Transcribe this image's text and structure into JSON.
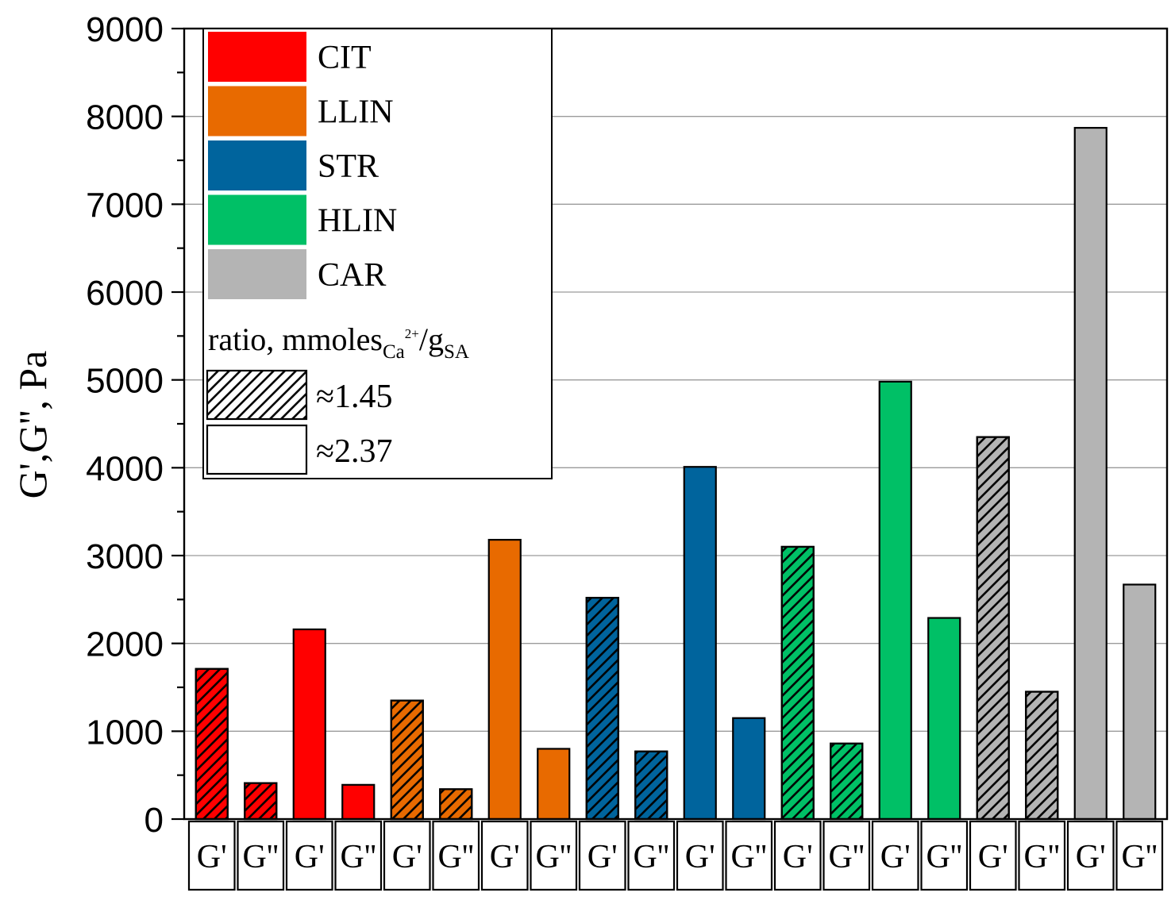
{
  "chart_data": {
    "type": "bar",
    "title": "",
    "xlabel": "",
    "ylabel": "G',G'', Pa",
    "ylim": [
      0,
      9000
    ],
    "yticks": [
      0,
      1000,
      2000,
      3000,
      4000,
      5000,
      6000,
      7000,
      8000,
      9000
    ],
    "grid": true,
    "legend_position": "top-left",
    "categories": [
      "G'",
      "G''",
      "G'",
      "G''",
      "G'",
      "G''",
      "G'",
      "G''",
      "G'",
      "G''",
      "G'",
      "G''",
      "G'",
      "G''",
      "G'",
      "G''",
      "G'",
      "G''",
      "G'",
      "G''"
    ],
    "values": [
      1710,
      410,
      2160,
      390,
      1350,
      340,
      3180,
      800,
      2520,
      770,
      4010,
      1150,
      3100,
      860,
      4980,
      2290,
      4350,
      1450,
      7870,
      2670
    ],
    "bar_series": [
      "CIT",
      "CIT",
      "CIT",
      "CIT",
      "LLIN",
      "LLIN",
      "LLIN",
      "LLIN",
      "STR",
      "STR",
      "STR",
      "STR",
      "HLIN",
      "HLIN",
      "HLIN",
      "HLIN",
      "CAR",
      "CAR",
      "CAR",
      "CAR"
    ],
    "bar_ratio": [
      "1.45",
      "1.45",
      "2.37",
      "2.37",
      "1.45",
      "1.45",
      "2.37",
      "2.37",
      "1.45",
      "1.45",
      "2.37",
      "2.37",
      "1.45",
      "1.45",
      "2.37",
      "2.37",
      "1.45",
      "1.45",
      "2.37",
      "2.37"
    ],
    "series": [
      {
        "name": "CIT",
        "color": "#ff0000"
      },
      {
        "name": "LLIN",
        "color": "#e86a00"
      },
      {
        "name": "STR",
        "color": "#00649d"
      },
      {
        "name": "HLIN",
        "color": "#00c066"
      },
      {
        "name": "CAR",
        "color": "#b4b4b4"
      }
    ],
    "legend": {
      "ratio_title_prefix": "ratio, mmoles",
      "ratio_title_sub1": "Ca",
      "ratio_title_sup": "2+",
      "ratio_title_slash": "/g",
      "ratio_title_sub2": "SA",
      "ratio_items": [
        {
          "label": "≈1.45",
          "pattern": "hatched"
        },
        {
          "label": "≈2.37",
          "pattern": "solid"
        }
      ]
    }
  }
}
